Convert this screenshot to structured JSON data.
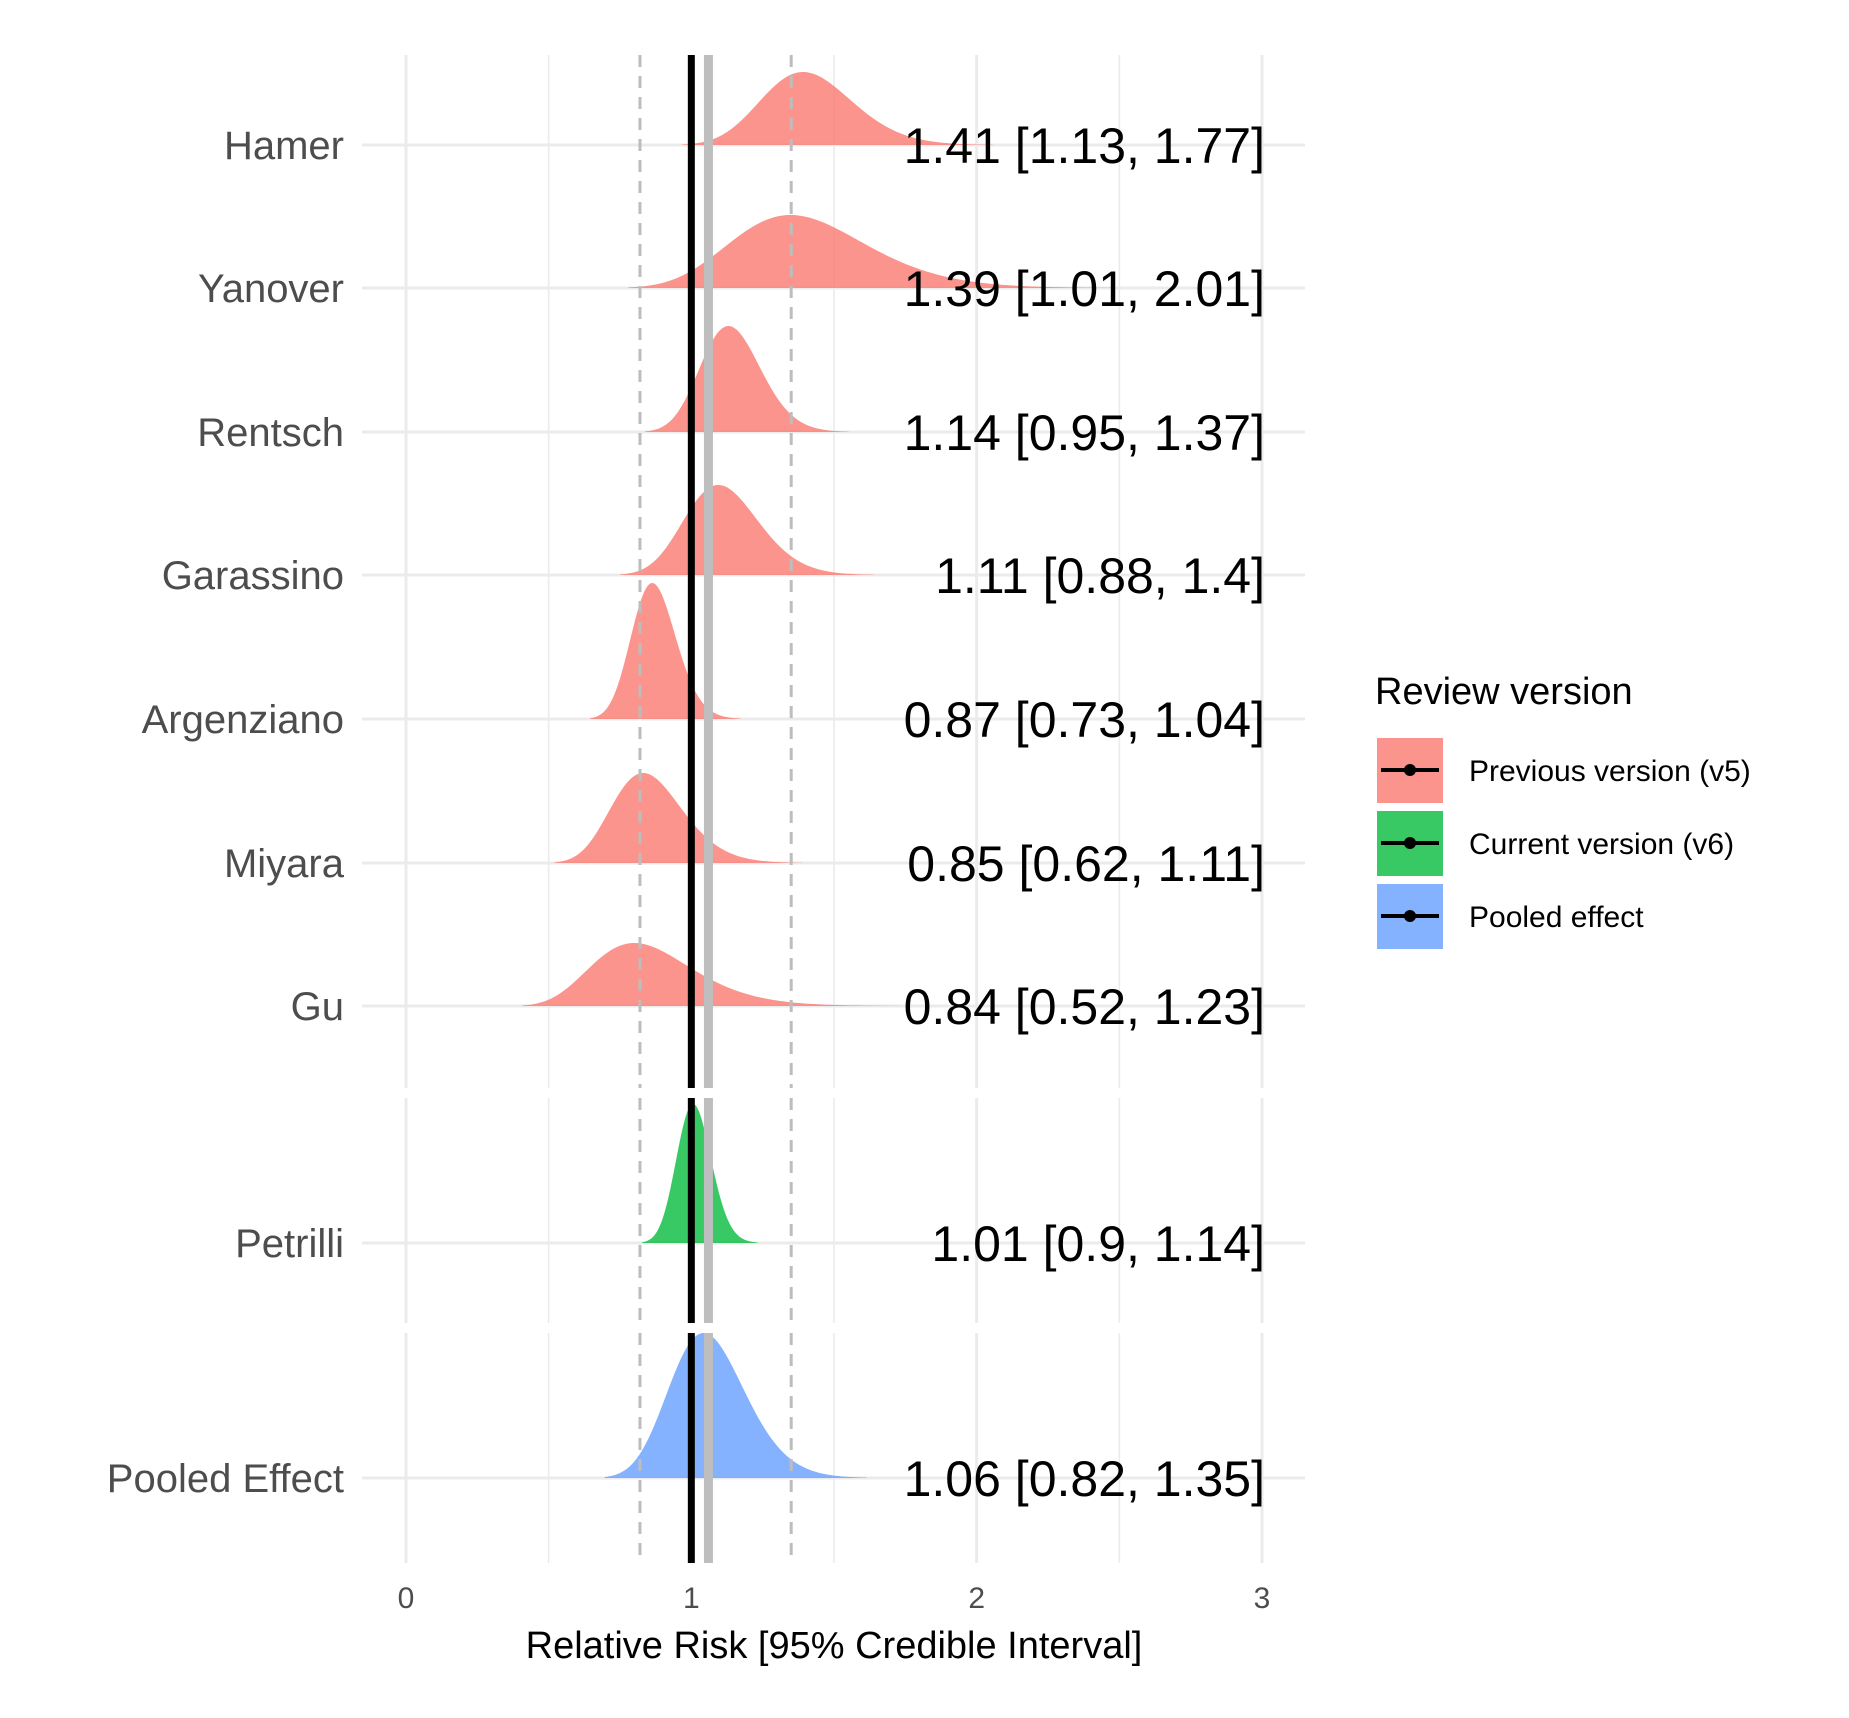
{
  "chart_data": {
    "type": "ridgeline",
    "xlabel": "Relative Risk [95% Credible Interval]",
    "xlim": [
      -0.15,
      3.15
    ],
    "x_ticks": [
      0,
      1,
      2,
      3
    ],
    "x_tick_labels": [
      "0",
      "1",
      "2",
      "3"
    ],
    "grid": true,
    "reference_lines": {
      "null_effect": 1.0,
      "pooled_estimate": 1.06,
      "pooled_interval": [
        0.82,
        1.35
      ]
    },
    "legend": {
      "title": "Review version",
      "placement": "right",
      "items": [
        {
          "key": "v5",
          "label": "Previous version (v5)",
          "color": "#F8766D"
        },
        {
          "key": "v6",
          "label": "Current version (v6)",
          "color": "#00BA38"
        },
        {
          "key": "pooled",
          "label": "Pooled effect",
          "color": "#619CFF"
        }
      ]
    },
    "studies": [
      {
        "name": "Hamer",
        "group": "v5",
        "estimate": 1.41,
        "lower": 1.13,
        "upper": 1.77,
        "label": "1.41 [1.13, 1.77]"
      },
      {
        "name": "Yanover",
        "group": "v5",
        "estimate": 1.39,
        "lower": 1.01,
        "upper": 2.01,
        "label": "1.39 [1.01, 2.01]"
      },
      {
        "name": "Rentsch",
        "group": "v5",
        "estimate": 1.14,
        "lower": 0.95,
        "upper": 1.37,
        "label": "1.14 [0.95, 1.37]"
      },
      {
        "name": "Garassino",
        "group": "v5",
        "estimate": 1.11,
        "lower": 0.88,
        "upper": 1.4,
        "label": "1.11 [0.88, 1.4]"
      },
      {
        "name": "Argenziano",
        "group": "v5",
        "estimate": 0.87,
        "lower": 0.73,
        "upper": 1.04,
        "label": "0.87 [0.73, 1.04]"
      },
      {
        "name": "Miyara",
        "group": "v5",
        "estimate": 0.85,
        "lower": 0.62,
        "upper": 1.11,
        "label": "0.85 [0.62, 1.11]"
      },
      {
        "name": "Gu",
        "group": "v5",
        "estimate": 0.84,
        "lower": 0.52,
        "upper": 1.23,
        "label": "0.84 [0.52, 1.23]"
      },
      {
        "name": "Petrilli",
        "group": "v6",
        "estimate": 1.01,
        "lower": 0.9,
        "upper": 1.14,
        "label": "1.01 [0.9, 1.14]"
      },
      {
        "name": "Pooled Effect",
        "group": "pooled",
        "estimate": 1.06,
        "lower": 0.82,
        "upper": 1.35,
        "label": "1.06 [0.82, 1.35]"
      }
    ]
  }
}
